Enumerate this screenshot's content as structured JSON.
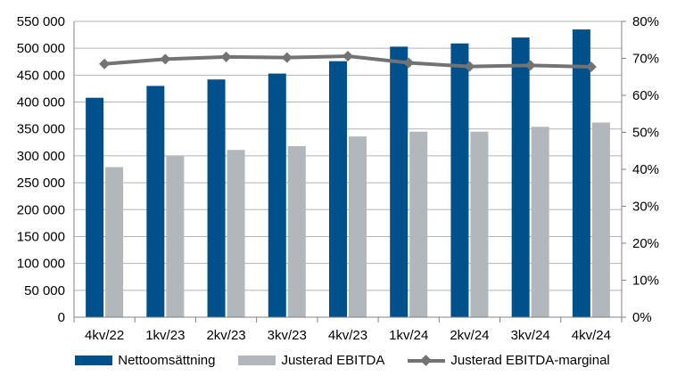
{
  "chart_data": {
    "type": "bar",
    "categories": [
      "4kv/22",
      "1kv/23",
      "2kv/23",
      "3kv/23",
      "4kv/23",
      "1kv/24",
      "2kv/24",
      "3kv/24",
      "4kv/24"
    ],
    "series": [
      {
        "name": "Nettoomsättning",
        "type": "bar",
        "axis": "left",
        "color": "#00508c",
        "values": [
          408000,
          430000,
          442000,
          453000,
          476000,
          503000,
          509000,
          520000,
          535000
        ]
      },
      {
        "name": "Justerad EBITDA",
        "type": "bar",
        "axis": "left",
        "color": "#b2b7bb",
        "values": [
          279000,
          300000,
          311000,
          318000,
          336000,
          345000,
          345000,
          354000,
          362000
        ]
      },
      {
        "name": "Justerad EBITDA-marginal",
        "type": "line",
        "axis": "right",
        "color": "#737373",
        "values": [
          0.685,
          0.698,
          0.704,
          0.702,
          0.706,
          0.688,
          0.678,
          0.681,
          0.677
        ]
      }
    ],
    "ylim_left": [
      0,
      550000
    ],
    "ylim_right": [
      0,
      0.8
    ],
    "yticks_left": [
      "0",
      "50 000",
      "100 000",
      "150 000",
      "200 000",
      "250 000",
      "300 000",
      "350 000",
      "400 000",
      "450 000",
      "500 000",
      "550 000"
    ],
    "yticks_right": [
      "0%",
      "10%",
      "20%",
      "30%",
      "40%",
      "50%",
      "60%",
      "70%",
      "80%"
    ],
    "grid": true,
    "legend_position": "bottom"
  },
  "legend": {
    "items": [
      {
        "label": "Nettoomsättning"
      },
      {
        "label": "Justerad EBITDA"
      },
      {
        "label": "Justerad EBITDA-marginal"
      }
    ]
  },
  "colors": {
    "bar_primary": "#00508c",
    "bar_secondary": "#b2b7bb",
    "line": "#737373",
    "grid": "#b3b3b3",
    "axis": "#808080"
  }
}
